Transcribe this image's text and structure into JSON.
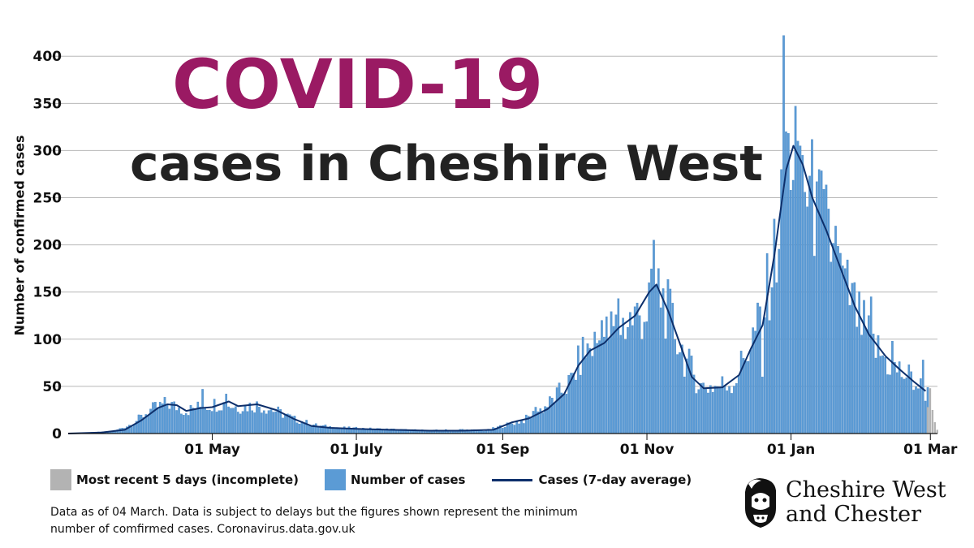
{
  "title": "COVID-19",
  "subtitle": "cases in Cheshire West",
  "colors": {
    "bars": "#5b9bd5",
    "bars_stroke": "#3f7fbf",
    "incomplete": "#b3b3b3",
    "average_line": "#0d2f6b",
    "title": "#9a1a63",
    "grid": "#b8b8b8"
  },
  "chart_data": {
    "type": "bar",
    "title": "COVID-19 cases in Cheshire West",
    "ylabel": "Number of confirmed cases",
    "ylim": [
      0,
      420
    ],
    "yticks": [
      0,
      50,
      100,
      150,
      200,
      250,
      300,
      350,
      400
    ],
    "x_range": [
      "2020-03-01",
      "2021-03-04"
    ],
    "xticks": [
      {
        "date": "2020-05-01",
        "label": "01 May"
      },
      {
        "date": "2020-07-01",
        "label": "01 July"
      },
      {
        "date": "2020-09-01",
        "label": "01 Sep"
      },
      {
        "date": "2020-11-01",
        "label": "01 Nov"
      },
      {
        "date": "2021-01-01",
        "label": "01 Jan"
      },
      {
        "date": "2021-03-01",
        "label": "01 Mar"
      }
    ],
    "grid": true,
    "legend_position": "bottom-left",
    "series": [
      {
        "name": "Number of cases",
        "kind": "daily",
        "anchors": [
          [
            "2020-03-01",
            0
          ],
          [
            "2020-03-20",
            2
          ],
          [
            "2020-03-28",
            10
          ],
          [
            "2020-04-05",
            25
          ],
          [
            "2020-04-12",
            32
          ],
          [
            "2020-04-20",
            24
          ],
          [
            "2020-04-28",
            30
          ],
          [
            "2020-05-05",
            32
          ],
          [
            "2020-05-12",
            28
          ],
          [
            "2020-05-20",
            30
          ],
          [
            "2020-05-28",
            24
          ],
          [
            "2020-06-05",
            15
          ],
          [
            "2020-06-15",
            8
          ],
          [
            "2020-06-25",
            6
          ],
          [
            "2020-07-05",
            5
          ],
          [
            "2020-07-20",
            4
          ],
          [
            "2020-08-01",
            3
          ],
          [
            "2020-08-15",
            4
          ],
          [
            "2020-08-25",
            3
          ],
          [
            "2020-09-01",
            8
          ],
          [
            "2020-09-10",
            14
          ],
          [
            "2020-09-20",
            30
          ],
          [
            "2020-09-30",
            55
          ],
          [
            "2020-10-05",
            85
          ],
          [
            "2020-10-10",
            95
          ],
          [
            "2020-10-18",
            110
          ],
          [
            "2020-10-25",
            120
          ],
          [
            "2020-11-01",
            130
          ],
          [
            "2020-11-06",
            155
          ],
          [
            "2020-11-12",
            115
          ],
          [
            "2020-11-18",
            75
          ],
          [
            "2020-11-24",
            50
          ],
          [
            "2020-12-01",
            50
          ],
          [
            "2020-12-08",
            55
          ],
          [
            "2020-12-14",
            90
          ],
          [
            "2020-12-20",
            125
          ],
          [
            "2020-12-26",
            200
          ],
          [
            "2020-12-30",
            280
          ],
          [
            "2021-01-03",
            300
          ],
          [
            "2021-01-08",
            260
          ],
          [
            "2021-01-15",
            220
          ],
          [
            "2021-01-22",
            170
          ],
          [
            "2021-01-30",
            120
          ],
          [
            "2021-02-06",
            90
          ],
          [
            "2021-02-13",
            70
          ],
          [
            "2021-02-20",
            60
          ],
          [
            "2021-02-28",
            42
          ]
        ],
        "overrides": [
          [
            "2020-04-27",
            47
          ],
          [
            "2020-05-07",
            42
          ],
          [
            "2020-09-15",
            28
          ],
          [
            "2020-10-13",
            120
          ],
          [
            "2020-10-20",
            143
          ],
          [
            "2020-11-02",
            160
          ],
          [
            "2020-11-04",
            205
          ],
          [
            "2020-11-06",
            175
          ],
          [
            "2020-12-20",
            60
          ],
          [
            "2020-12-26",
            160
          ],
          [
            "2020-12-28",
            280
          ],
          [
            "2020-12-29",
            422
          ],
          [
            "2020-12-30",
            320
          ],
          [
            "2021-01-01",
            258
          ],
          [
            "2021-01-03",
            347
          ],
          [
            "2021-01-04",
            310
          ],
          [
            "2021-01-05",
            305
          ],
          [
            "2021-01-12",
            267
          ],
          [
            "2021-01-20",
            220
          ],
          [
            "2021-01-24",
            175
          ],
          [
            "2021-02-04",
            145
          ],
          [
            "2021-02-13",
            98
          ],
          [
            "2021-02-26",
            78
          ]
        ]
      },
      {
        "name": "Cases (7-day average)",
        "kind": "line",
        "points": [
          [
            "2020-03-01",
            0
          ],
          [
            "2020-03-15",
            1
          ],
          [
            "2020-03-25",
            4
          ],
          [
            "2020-04-01",
            14
          ],
          [
            "2020-04-08",
            27
          ],
          [
            "2020-04-12",
            31
          ],
          [
            "2020-04-16",
            30
          ],
          [
            "2020-04-20",
            24
          ],
          [
            "2020-04-26",
            27
          ],
          [
            "2020-05-01",
            28
          ],
          [
            "2020-05-08",
            34
          ],
          [
            "2020-05-12",
            29
          ],
          [
            "2020-05-20",
            31
          ],
          [
            "2020-05-28",
            25
          ],
          [
            "2020-06-05",
            15
          ],
          [
            "2020-06-12",
            8
          ],
          [
            "2020-06-20",
            6
          ],
          [
            "2020-07-01",
            5
          ],
          [
            "2020-07-15",
            4
          ],
          [
            "2020-08-01",
            3
          ],
          [
            "2020-08-15",
            3
          ],
          [
            "2020-08-28",
            4
          ],
          [
            "2020-09-05",
            12
          ],
          [
            "2020-09-12",
            16
          ],
          [
            "2020-09-20",
            26
          ],
          [
            "2020-09-27",
            42
          ],
          [
            "2020-10-03",
            72
          ],
          [
            "2020-10-08",
            88
          ],
          [
            "2020-10-14",
            96
          ],
          [
            "2020-10-20",
            112
          ],
          [
            "2020-10-27",
            125
          ],
          [
            "2020-11-02",
            150
          ],
          [
            "2020-11-05",
            158
          ],
          [
            "2020-11-10",
            130
          ],
          [
            "2020-11-15",
            95
          ],
          [
            "2020-11-20",
            60
          ],
          [
            "2020-11-25",
            48
          ],
          [
            "2020-12-03",
            49
          ],
          [
            "2020-12-10",
            62
          ],
          [
            "2020-12-15",
            90
          ],
          [
            "2020-12-20",
            115
          ],
          [
            "2020-12-25",
            190
          ],
          [
            "2020-12-30",
            280
          ],
          [
            "2021-01-02",
            305
          ],
          [
            "2021-01-06",
            285
          ],
          [
            "2021-01-10",
            250
          ],
          [
            "2021-01-16",
            215
          ],
          [
            "2021-01-22",
            175
          ],
          [
            "2021-01-28",
            135
          ],
          [
            "2021-02-03",
            105
          ],
          [
            "2021-02-10",
            82
          ],
          [
            "2021-02-16",
            68
          ],
          [
            "2021-02-22",
            55
          ],
          [
            "2021-02-27",
            45
          ]
        ]
      },
      {
        "name": "Most recent 5 days (incomplete)",
        "kind": "incomplete",
        "points": [
          [
            "2021-02-28",
            28
          ],
          [
            "2021-03-01",
            48
          ],
          [
            "2021-03-02",
            25
          ],
          [
            "2021-03-03",
            12
          ],
          [
            "2021-03-04",
            4
          ]
        ]
      }
    ]
  },
  "legend": [
    {
      "label": "Most recent 5 days (incomplete)",
      "type": "swatch",
      "color": "#b3b3b3"
    },
    {
      "label": "Number of cases",
      "type": "swatch",
      "color": "#5b9bd5"
    },
    {
      "label": "Cases (7-day average)",
      "type": "line",
      "color": "#0d2f6b"
    }
  ],
  "footnote": "Data as of  04 March. Data is subject to delays but the figures shown represent the minimum number of comfirmed cases.  Coronavirus.data.gov.uk",
  "logo": {
    "line1": "Cheshire West",
    "line2": "and Chester",
    "icon": "lion-crest-icon"
  }
}
